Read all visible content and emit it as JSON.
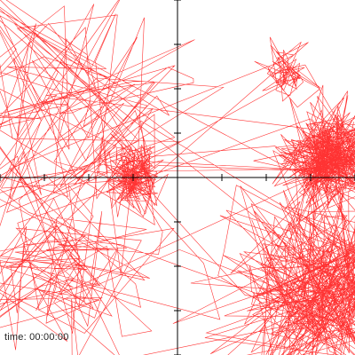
{
  "view": {
    "background": "#ffffff",
    "axis_color": "#000000",
    "trace_color": "#ff0000"
  },
  "status": {
    "time_label": "time:",
    "time_value": "00:00:00"
  },
  "chart_data": {
    "type": "line",
    "xlim": [
      -4,
      4
    ],
    "ylim": [
      -4,
      4
    ],
    "x_tick_step": 1,
    "y_tick_step": 1,
    "grid": false,
    "clusters": [
      {
        "name": "",
        "cx": -1.0,
        "cy": 0.0,
        "spread": 0.35,
        "count": 160
      },
      {
        "name": "",
        "cx": 3.5,
        "cy": 0.45,
        "spread": 0.55,
        "count": 420
      },
      {
        "name": "",
        "cx": 2.45,
        "cy": 2.35,
        "spread": 0.3,
        "count": 70
      },
      {
        "name": "",
        "cx": 3.2,
        "cy": -2.6,
        "spread": 1.1,
        "count": 360
      },
      {
        "name": "",
        "cx": -2.6,
        "cy": 1.6,
        "spread": 1.5,
        "count": 120
      },
      {
        "name": "",
        "cx": -2.3,
        "cy": -1.8,
        "spread": 1.2,
        "count": 110
      }
    ]
  }
}
